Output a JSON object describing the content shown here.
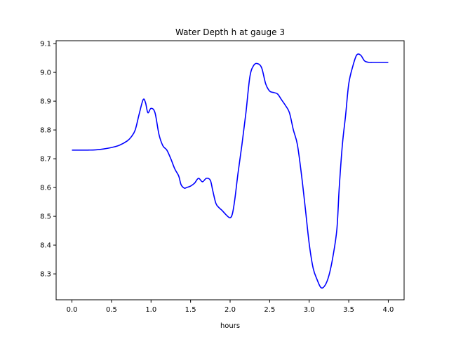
{
  "chart_data": {
    "type": "line",
    "title": "Water Depth h at gauge 3",
    "xlabel": "hours",
    "ylabel": "",
    "xlim": [
      -0.2,
      4.2
    ],
    "ylim": [
      8.21,
      9.11
    ],
    "xticks": [
      0.0,
      0.5,
      1.0,
      1.5,
      2.0,
      2.5,
      3.0,
      3.5,
      4.0
    ],
    "xtick_labels": [
      "0.0",
      "0.5",
      "1.0",
      "1.5",
      "2.0",
      "2.5",
      "3.0",
      "3.5",
      "4.0"
    ],
    "yticks": [
      8.3,
      8.4,
      8.5,
      8.6,
      8.7,
      8.8,
      8.9,
      9.0,
      9.1
    ],
    "ytick_labels": [
      "8.3",
      "8.4",
      "8.5",
      "8.6",
      "8.7",
      "8.8",
      "8.9",
      "9.0",
      "9.1"
    ],
    "grid": false,
    "legend": "none",
    "series": [
      {
        "color": "#0000ff",
        "x": [
          0.0,
          0.1,
          0.2,
          0.3,
          0.4,
          0.5,
          0.6,
          0.7,
          0.75,
          0.8,
          0.85,
          0.9,
          0.93,
          0.96,
          1.0,
          1.05,
          1.1,
          1.15,
          1.2,
          1.25,
          1.3,
          1.35,
          1.38,
          1.42,
          1.45,
          1.5,
          1.55,
          1.6,
          1.65,
          1.7,
          1.75,
          1.78,
          1.82,
          1.86,
          1.9,
          1.95,
          2.0,
          2.03,
          2.06,
          2.1,
          2.15,
          2.2,
          2.25,
          2.3,
          2.35,
          2.4,
          2.45,
          2.5,
          2.55,
          2.6,
          2.65,
          2.7,
          2.75,
          2.8,
          2.85,
          2.9,
          2.95,
          3.0,
          3.05,
          3.1,
          3.15,
          3.2,
          3.25,
          3.3,
          3.35,
          3.38,
          3.42,
          3.46,
          3.5,
          3.55,
          3.6,
          3.65,
          3.7,
          3.75,
          3.8,
          3.85,
          3.9,
          3.95,
          4.0
        ],
        "y": [
          8.73,
          8.73,
          8.73,
          8.731,
          8.734,
          8.739,
          8.747,
          8.762,
          8.776,
          8.8,
          8.855,
          8.905,
          8.895,
          8.86,
          8.875,
          8.86,
          8.785,
          8.745,
          8.73,
          8.7,
          8.665,
          8.64,
          8.61,
          8.598,
          8.6,
          8.605,
          8.615,
          8.632,
          8.62,
          8.632,
          8.625,
          8.59,
          8.545,
          8.53,
          8.52,
          8.505,
          8.495,
          8.51,
          8.56,
          8.65,
          8.75,
          8.86,
          8.985,
          9.025,
          9.03,
          9.015,
          8.96,
          8.935,
          8.93,
          8.925,
          8.905,
          8.885,
          8.86,
          8.8,
          8.75,
          8.65,
          8.53,
          8.405,
          8.32,
          8.28,
          8.252,
          8.26,
          8.295,
          8.36,
          8.455,
          8.6,
          8.75,
          8.85,
          8.96,
          9.02,
          9.06,
          9.06,
          9.04,
          9.035,
          9.035,
          9.035,
          9.035,
          9.035,
          9.035
        ]
      }
    ]
  }
}
